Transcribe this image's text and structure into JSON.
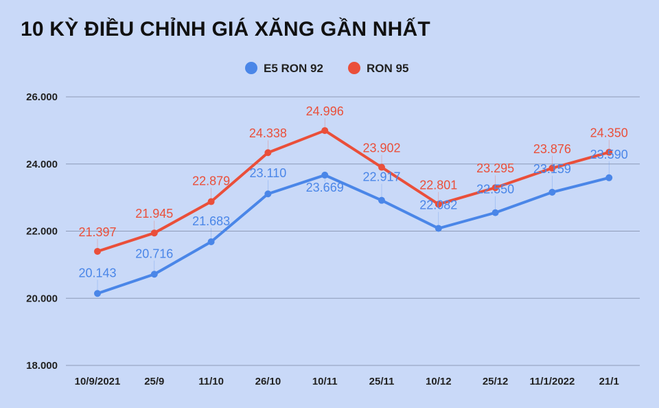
{
  "title": "10 KỲ ĐIỀU CHỈNH GIÁ XĂNG GẦN NHẤT",
  "colors": {
    "background": "#c9d9f8",
    "e5": "#4a86e8",
    "ron95": "#ea4f3a",
    "grid": "#8e9bb8"
  },
  "chart_data": {
    "type": "line",
    "title": "10 KỲ ĐIỀU CHỈNH GIÁ XĂNG GẦN NHẤT",
    "categories": [
      "10/9/2021",
      "25/9",
      "11/10",
      "26/10",
      "10/11",
      "25/11",
      "10/12",
      "25/12",
      "11/1/2022",
      "21/1"
    ],
    "series": [
      {
        "name": "E5 RON 92",
        "values": [
          20143,
          20716,
          21683,
          23110,
          23669,
          22917,
          22082,
          22550,
          23159,
          23590
        ],
        "labels": [
          "20.143",
          "20.716",
          "21.683",
          "23.110",
          "23.669",
          "22.917",
          "22.082",
          "22.550",
          "23.159",
          "23.590"
        ]
      },
      {
        "name": "RON 95",
        "values": [
          21397,
          21945,
          22879,
          24338,
          24996,
          23902,
          22801,
          23295,
          23876,
          24350
        ],
        "labels": [
          "21.397",
          "21.945",
          "22.879",
          "24.338",
          "24.996",
          "23.902",
          "22.801",
          "23.295",
          "23.876",
          "24.350"
        ]
      }
    ],
    "ylim": [
      18000,
      26000
    ],
    "yticks": [
      18000,
      20000,
      22000,
      24000,
      26000
    ],
    "ytick_labels": [
      "18.000",
      "20.000",
      "22.000",
      "24.000",
      "26.000"
    ],
    "xlabel": "",
    "ylabel": "",
    "grid": true,
    "legend_position": "top-center"
  }
}
